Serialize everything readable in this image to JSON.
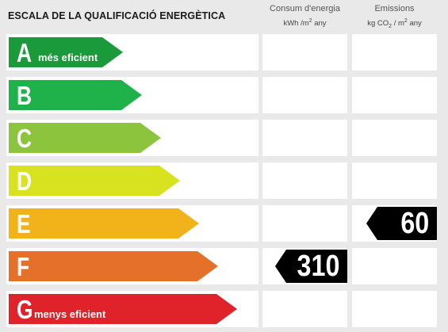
{
  "header": {
    "title": "ESCALA DE LA QUALIFICACIÓ ENERGÈTICA",
    "consum_title": "Consum d'energia",
    "consum_unit_pre": "kWh /m",
    "consum_unit_sup": "2",
    "consum_unit_post": " any",
    "emis_title": "Emissions",
    "emis_unit_pre": "kg CO",
    "emis_unit_sub": "2",
    "emis_unit_mid": " / m",
    "emis_unit_sup": "2",
    "emis_unit_post": " any"
  },
  "ratings": [
    {
      "letter": "A",
      "caption": "més eficient",
      "color": "#1a9a3a"
    },
    {
      "letter": "B",
      "caption": "",
      "color": "#20b24a"
    },
    {
      "letter": "C",
      "caption": "",
      "color": "#8cc43e"
    },
    {
      "letter": "D",
      "caption": "",
      "color": "#d8e21e"
    },
    {
      "letter": "E",
      "caption": "",
      "color": "#f2b21a"
    },
    {
      "letter": "F",
      "caption": "",
      "color": "#e5702a"
    },
    {
      "letter": "G",
      "caption": "menys eficient",
      "color": "#e0222a"
    }
  ],
  "values": {
    "consum": {
      "rating": "F",
      "value": "310"
    },
    "emissions": {
      "rating": "E",
      "value": "60"
    }
  }
}
